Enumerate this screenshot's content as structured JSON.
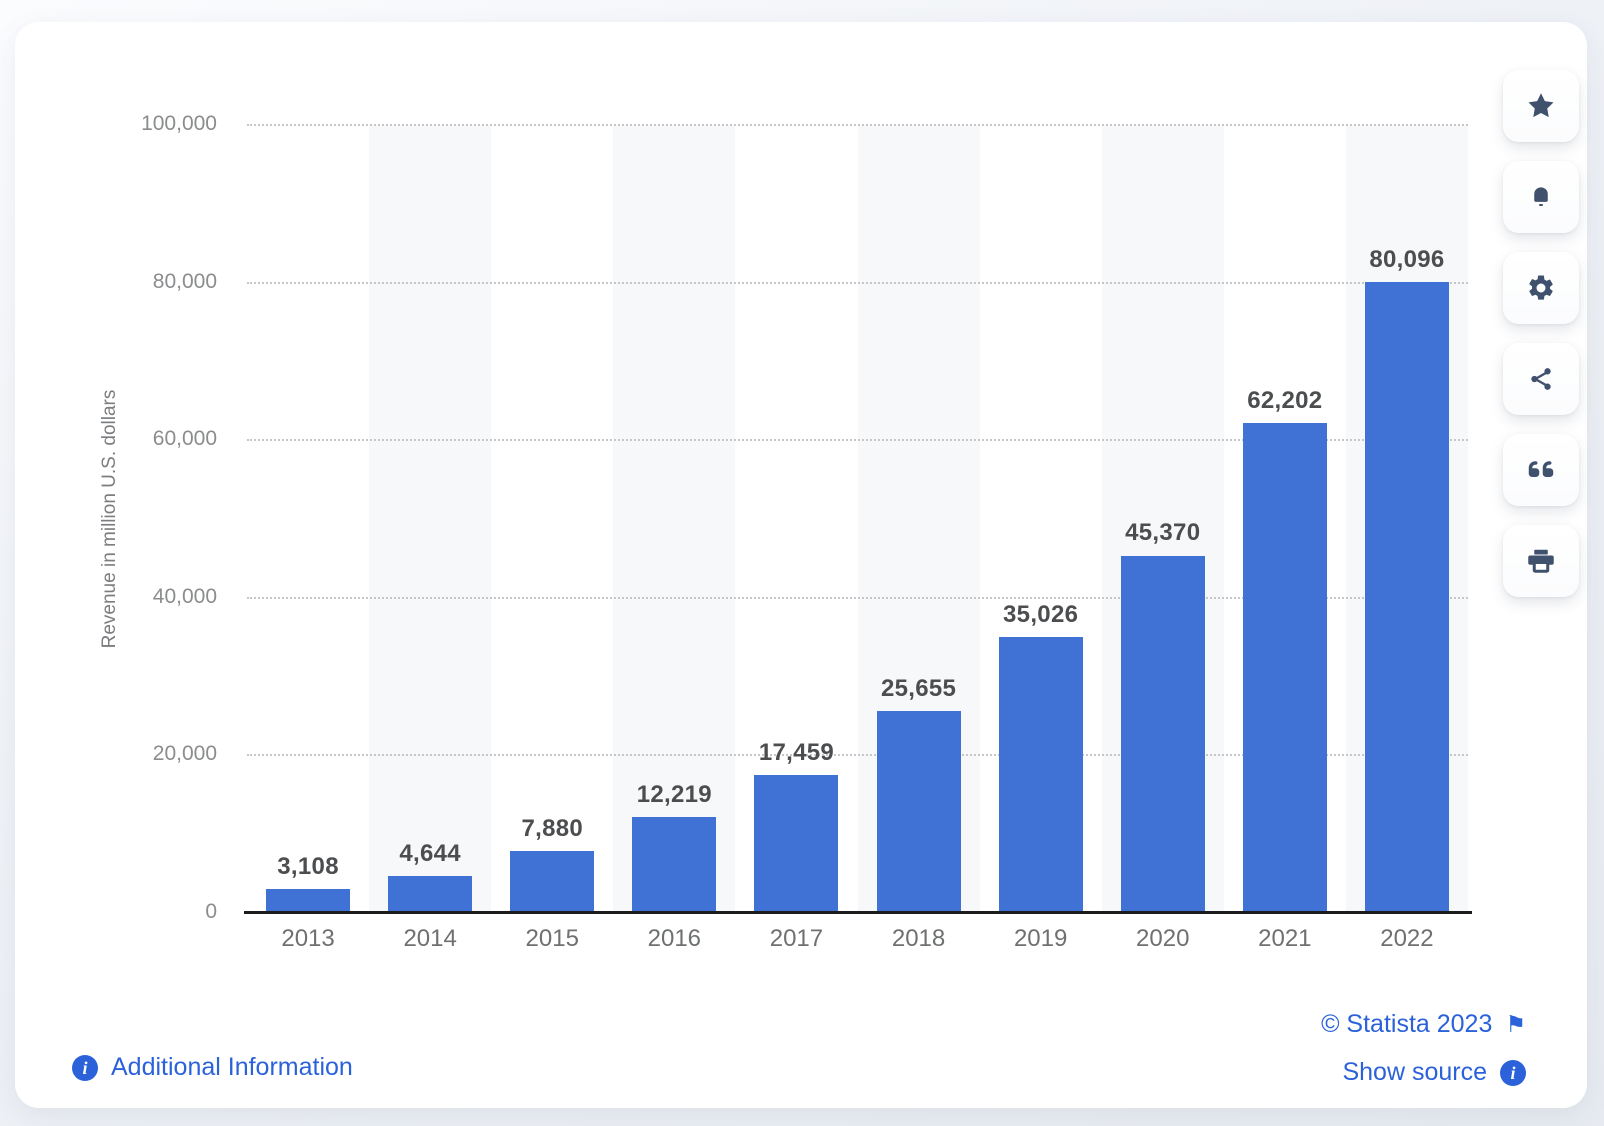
{
  "chart_data": {
    "type": "bar",
    "title": "",
    "categories": [
      "2013",
      "2014",
      "2015",
      "2016",
      "2017",
      "2018",
      "2019",
      "2020",
      "2021",
      "2022"
    ],
    "values": [
      3108,
      4644,
      7880,
      12219,
      17459,
      25655,
      35026,
      45370,
      62202,
      80096
    ],
    "value_labels": [
      "3,108",
      "4,644",
      "7,880",
      "12,219",
      "17,459",
      "25,655",
      "35,026",
      "45,370",
      "62,202",
      "80,096"
    ],
    "xlabel": "",
    "ylabel": "Revenue in million U.S. dollars",
    "ylim": [
      0,
      100000
    ],
    "yticks": [
      {
        "value": 0,
        "label": "0"
      },
      {
        "value": 20000,
        "label": "20,000"
      },
      {
        "value": 40000,
        "label": "40,000"
      },
      {
        "value": 60000,
        "label": "60,000"
      },
      {
        "value": 80000,
        "label": "80,000"
      },
      {
        "value": 100000,
        "label": "100,000"
      }
    ],
    "grid": "horizontal-dotted",
    "legend": "none",
    "bar_color": "#3f72d4",
    "stripe_color": "#f7f8f9",
    "striped_categories": [
      "2014",
      "2016",
      "2018",
      "2020",
      "2022"
    ]
  },
  "toolbar": {
    "buttons": [
      {
        "name": "favorite-button",
        "icon": "star-icon"
      },
      {
        "name": "alert-button",
        "icon": "bell-icon"
      },
      {
        "name": "settings-button",
        "icon": "gear-icon"
      },
      {
        "name": "share-button",
        "icon": "share-icon"
      },
      {
        "name": "cite-button",
        "icon": "quote-icon"
      },
      {
        "name": "print-button",
        "icon": "printer-icon"
      }
    ],
    "icon_color": "#3f516d"
  },
  "footer": {
    "additional_information_label": "Additional Information",
    "copyright_label": "© Statista 2023",
    "show_source_label": "Show source",
    "info_glyph": "i",
    "flag_glyph": "⚑"
  },
  "colors": {
    "bar": "#3f72d4",
    "link_blue": "#2b62da",
    "icon_slate": "#3f516d"
  }
}
